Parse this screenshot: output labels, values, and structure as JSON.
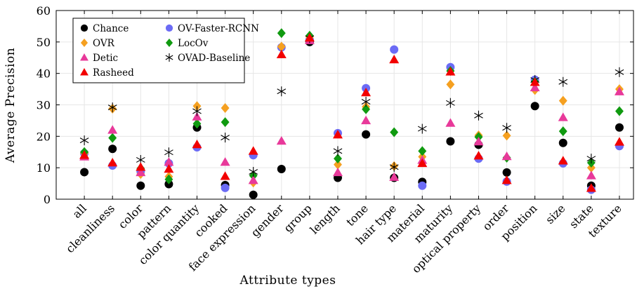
{
  "chart_data": {
    "type": "scatter",
    "xlabel": "Attribute types",
    "ylabel": "Average Precision",
    "ylim": [
      0,
      60
    ],
    "yticks": [
      0,
      10,
      20,
      30,
      40,
      50,
      60
    ],
    "grid": true,
    "legend_position": "top-left",
    "categories": [
      "all",
      "cleanliness",
      "color",
      "pattern",
      "color quantity",
      "cooked",
      "face expression",
      "gender",
      "group",
      "length",
      "tone",
      "hair type",
      "material",
      "maturity",
      "optical property",
      "order",
      "position",
      "size",
      "state",
      "texture"
    ],
    "series": [
      {
        "name": "Chance",
        "marker": "circle",
        "color": "#000000",
        "values": [
          8.6,
          16.0,
          4.3,
          4.8,
          22.8,
          4.5,
          1.4,
          9.6,
          50.0,
          6.8,
          20.6,
          6.8,
          5.5,
          18.4,
          17.3,
          8.5,
          29.6,
          17.9,
          4.3,
          22.8
        ]
      },
      {
        "name": "OV-Faster-RCNN",
        "marker": "circle",
        "color": "#6b6bf5",
        "values": [
          14.6,
          10.7,
          8.8,
          11.4,
          16.5,
          3.6,
          14.0,
          48.3,
          50.7,
          21.0,
          35.3,
          47.6,
          4.3,
          42.0,
          12.9,
          5.6,
          38.0,
          11.4,
          3.0,
          16.9
        ]
      },
      {
        "name": "OVR",
        "marker": "diamond",
        "color": "#f5a020",
        "values": [
          14.7,
          28.8,
          8.0,
          7.2,
          29.6,
          29.0,
          5.3,
          48.5,
          51.6,
          11.0,
          29.4,
          10.5,
          13.5,
          36.5,
          20.3,
          20.2,
          34.7,
          31.3,
          10.0,
          35.0
        ]
      },
      {
        "name": "LocOv",
        "marker": "diamond",
        "color": "#109a10",
        "values": [
          15.0,
          19.5,
          9.8,
          6.3,
          24.0,
          24.5,
          7.5,
          52.8,
          52.0,
          12.9,
          28.6,
          21.3,
          15.3,
          40.8,
          19.8,
          13.2,
          37.4,
          21.6,
          11.6,
          28.0
        ]
      },
      {
        "name": "Detic",
        "marker": "triangle",
        "color": "#e8399a",
        "values": [
          13.5,
          22.0,
          8.5,
          11.8,
          26.2,
          11.8,
          6.0,
          18.5,
          50.5,
          8.5,
          25.0,
          7.0,
          12.4,
          24.2,
          18.3,
          13.6,
          35.5,
          26.0,
          7.5,
          34.2
        ]
      },
      {
        "name": "OVAD-Baseline",
        "marker": "star",
        "color": "#000000",
        "values": [
          18.7,
          29.2,
          12.5,
          14.9,
          28.0,
          19.6,
          8.7,
          34.3,
          51.2,
          15.3,
          31.0,
          10.2,
          22.4,
          30.6,
          26.6,
          22.7,
          37.9,
          37.3,
          12.9,
          40.4
        ]
      },
      {
        "name": "Rasheed",
        "marker": "triangle",
        "color": "#f20000",
        "values": [
          14.0,
          11.6,
          10.2,
          9.6,
          17.4,
          7.3,
          15.3,
          46.0,
          51.3,
          20.5,
          33.9,
          44.4,
          11.4,
          40.5,
          13.8,
          6.0,
          37.2,
          12.2,
          3.5,
          18.2
        ]
      }
    ],
    "legend": [
      {
        "label": "Chance",
        "series": 0
      },
      {
        "label": "OV-Faster-RCNN",
        "series": 1
      },
      {
        "label": "OVR",
        "series": 2
      },
      {
        "label": "LocOv",
        "series": 3
      },
      {
        "label": "Detic",
        "series": 4
      },
      {
        "label": "OVAD-Baseline",
        "series": 5
      },
      {
        "label": "Rasheed",
        "series": 6
      }
    ]
  }
}
